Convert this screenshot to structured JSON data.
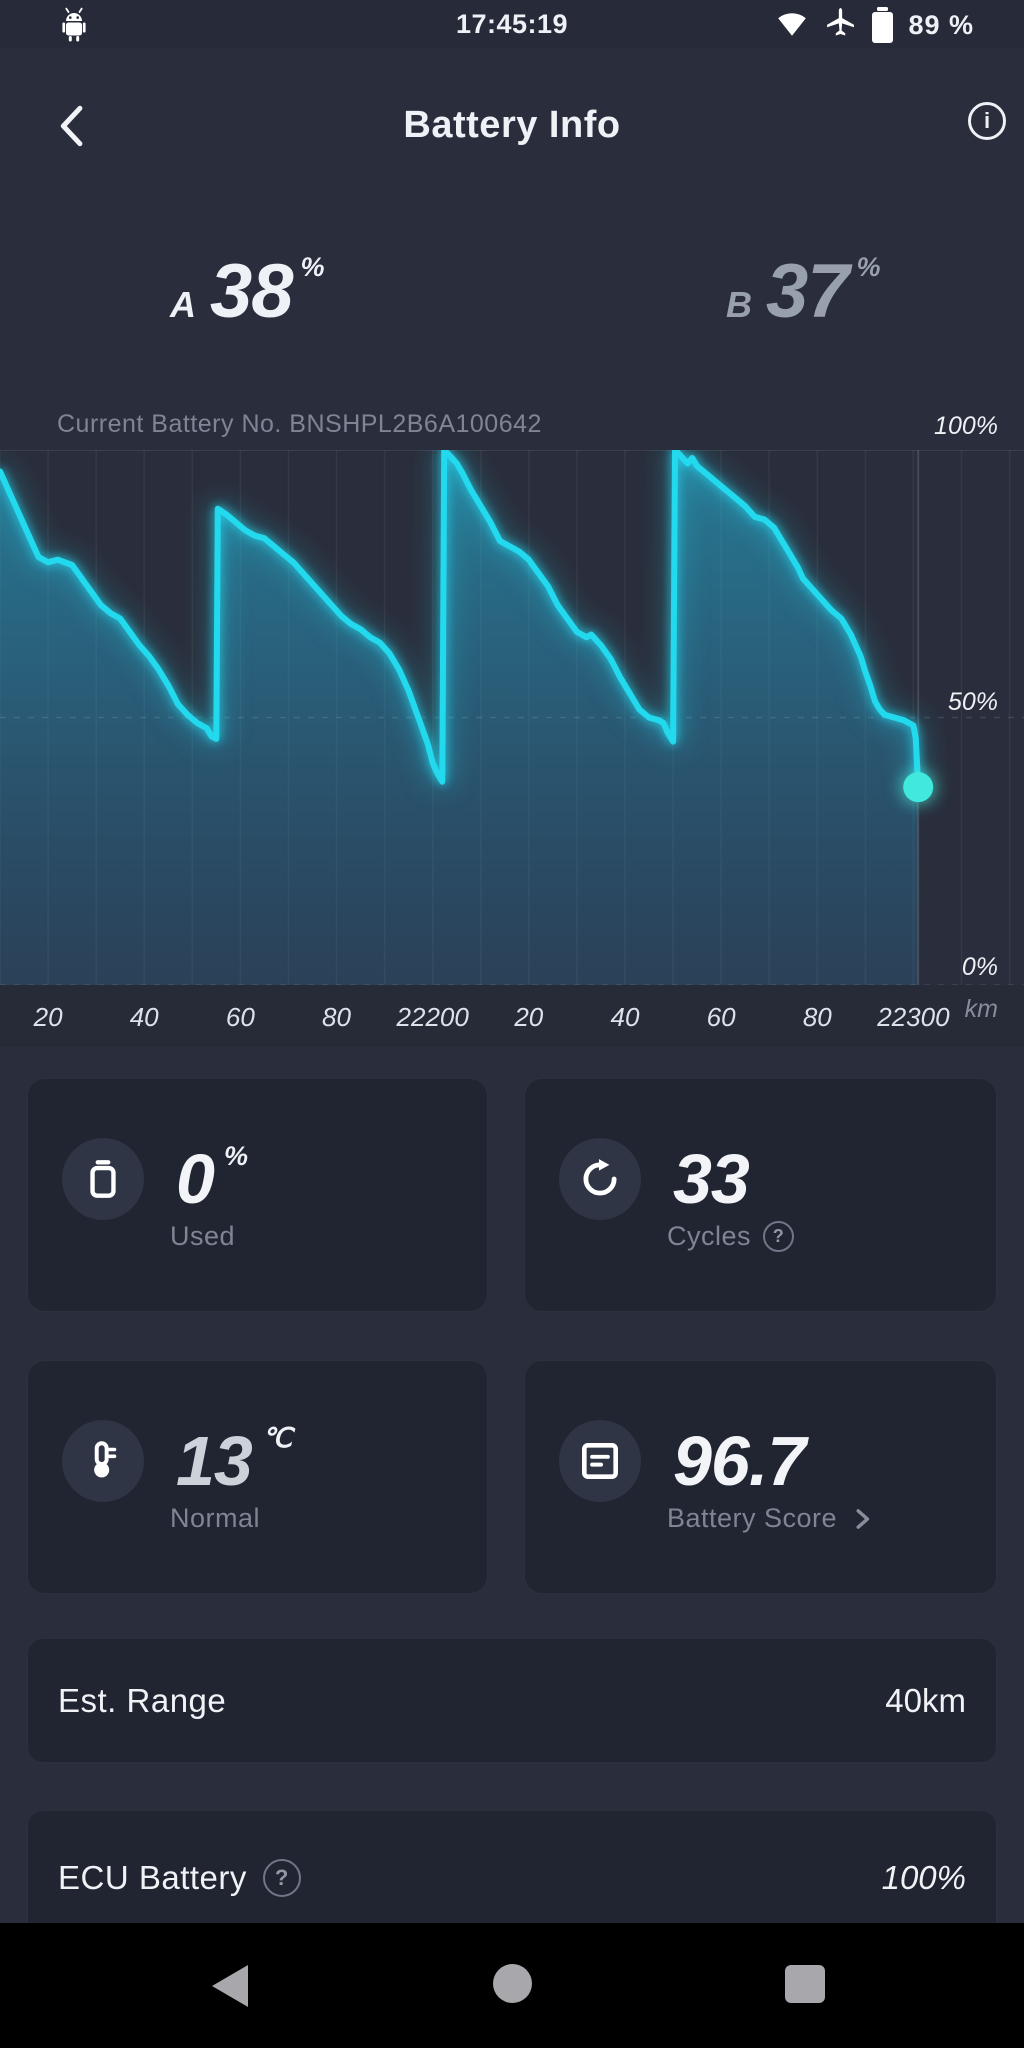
{
  "status_bar": {
    "time": "17:45:19",
    "battery": "89 %"
  },
  "icons": {
    "help": "?",
    "info": "i"
  },
  "header": {
    "title": "Battery Info"
  },
  "batteries": [
    {
      "name": "A",
      "value": "38",
      "unit": "%"
    },
    {
      "name": "B",
      "value": "37",
      "unit": "%"
    }
  ],
  "chart_header": {
    "battery_no": "Current Battery No. BNSHPL2B6A100642"
  },
  "chart_data": {
    "type": "area",
    "series_name": "Battery level",
    "x_unit": "km",
    "x_range": [
      22110,
      22323
    ],
    "y_range": [
      0,
      100
    ],
    "grid_step_km": 10,
    "y_tick_labels": [
      "100%",
      "50%",
      "0%"
    ],
    "x_ticks": [
      {
        "km": 22120,
        "label": "20"
      },
      {
        "km": 22140,
        "label": "40"
      },
      {
        "km": 22160,
        "label": "60"
      },
      {
        "km": 22180,
        "label": "80"
      },
      {
        "km": 22200,
        "label": "22200"
      },
      {
        "km": 22220,
        "label": "20"
      },
      {
        "km": 22240,
        "label": "40"
      },
      {
        "km": 22260,
        "label": "60"
      },
      {
        "km": 22280,
        "label": "80"
      },
      {
        "km": 22300,
        "label": "22300"
      }
    ],
    "line_color": "#23d9ee",
    "dot_color": "#40e9dc",
    "current_point": {
      "km": 22301,
      "pct": 37
    },
    "points": [
      [
        22110,
        96
      ],
      [
        22112,
        92
      ],
      [
        22114,
        88
      ],
      [
        22116,
        84
      ],
      [
        22118,
        80
      ],
      [
        22120,
        79
      ],
      [
        22122,
        79.5
      ],
      [
        22125,
        78.5
      ],
      [
        22127,
        76
      ],
      [
        22129,
        73.5
      ],
      [
        22131,
        71
      ],
      [
        22133,
        69.5
      ],
      [
        22135,
        68.5
      ],
      [
        22137,
        66
      ],
      [
        22139,
        63.5
      ],
      [
        22141,
        61.5
      ],
      [
        22143,
        59
      ],
      [
        22145,
        56
      ],
      [
        22147,
        52.5
      ],
      [
        22149,
        50.5
      ],
      [
        22151,
        49
      ],
      [
        22153,
        48
      ],
      [
        22154,
        46.5
      ],
      [
        22155,
        46
      ],
      [
        22155.3,
        89
      ],
      [
        22157,
        88
      ],
      [
        22159,
        86.5
      ],
      [
        22161,
        85
      ],
      [
        22163,
        84
      ],
      [
        22165,
        83.5
      ],
      [
        22167,
        82
      ],
      [
        22169,
        80.5
      ],
      [
        22171,
        79
      ],
      [
        22173,
        77
      ],
      [
        22175,
        75
      ],
      [
        22177,
        73
      ],
      [
        22179,
        71
      ],
      [
        22181,
        69
      ],
      [
        22183,
        67.5
      ],
      [
        22185,
        66.5
      ],
      [
        22187,
        65
      ],
      [
        22189,
        64
      ],
      [
        22191,
        62
      ],
      [
        22193,
        59
      ],
      [
        22195,
        55
      ],
      [
        22197,
        50
      ],
      [
        22199,
        45
      ],
      [
        22200,
        41.5
      ],
      [
        22201,
        39.5
      ],
      [
        22202,
        38
      ],
      [
        22202.4,
        100
      ],
      [
        22203.5,
        99
      ],
      [
        22205,
        97.5
      ],
      [
        22206,
        96
      ],
      [
        22208,
        92.5
      ],
      [
        22210,
        89.5
      ],
      [
        22212,
        86.5
      ],
      [
        22214,
        83
      ],
      [
        22216,
        82
      ],
      [
        22218,
        81
      ],
      [
        22220,
        79.5
      ],
      [
        22222,
        77
      ],
      [
        22224,
        74.5
      ],
      [
        22226,
        71
      ],
      [
        22228,
        68.5
      ],
      [
        22230,
        66
      ],
      [
        22232,
        65
      ],
      [
        22233,
        65.5
      ],
      [
        22235,
        63.5
      ],
      [
        22237,
        61
      ],
      [
        22239,
        57.5
      ],
      [
        22241,
        54.5
      ],
      [
        22243,
        51.5
      ],
      [
        22245,
        50
      ],
      [
        22247,
        49.5
      ],
      [
        22248,
        49
      ],
      [
        22249,
        47
      ],
      [
        22250,
        45.5
      ],
      [
        22250.4,
        100
      ],
      [
        22251.5,
        99
      ],
      [
        22253,
        97.5
      ],
      [
        22254,
        98.5
      ],
      [
        22255,
        97
      ],
      [
        22257,
        95.5
      ],
      [
        22259,
        94
      ],
      [
        22261,
        92.5
      ],
      [
        22263,
        91
      ],
      [
        22265,
        89.5
      ],
      [
        22267,
        87.5
      ],
      [
        22269,
        87
      ],
      [
        22271,
        85.5
      ],
      [
        22272,
        84
      ],
      [
        22273,
        82.5
      ],
      [
        22274,
        81
      ],
      [
        22276,
        78
      ],
      [
        22277,
        76
      ],
      [
        22279,
        74
      ],
      [
        22280,
        73
      ],
      [
        22282,
        71
      ],
      [
        22283,
        70
      ],
      [
        22285,
        68.5
      ],
      [
        22286,
        67
      ],
      [
        22287,
        65.5
      ],
      [
        22288,
        63.5
      ],
      [
        22289,
        61.5
      ],
      [
        22290,
        58.5
      ],
      [
        22291,
        56
      ],
      [
        22292,
        53
      ],
      [
        22293,
        51.5
      ],
      [
        22294,
        50.5
      ],
      [
        22296,
        50
      ],
      [
        22298,
        49.5
      ],
      [
        22300,
        48.5
      ],
      [
        22300.5,
        46
      ],
      [
        22301,
        37
      ]
    ]
  },
  "cards": [
    {
      "value": "0",
      "unit": "%",
      "label": "Used"
    },
    {
      "value": "33",
      "unit": "",
      "label": "Cycles"
    },
    {
      "value": "13",
      "unit": "℃",
      "label": "Normal"
    },
    {
      "value": "96.7",
      "unit": "",
      "label": "Battery Score"
    }
  ],
  "info_rows": [
    {
      "label": "Est. Range",
      "value": "40km"
    },
    {
      "label": "ECU Battery",
      "value": "100%"
    }
  ]
}
